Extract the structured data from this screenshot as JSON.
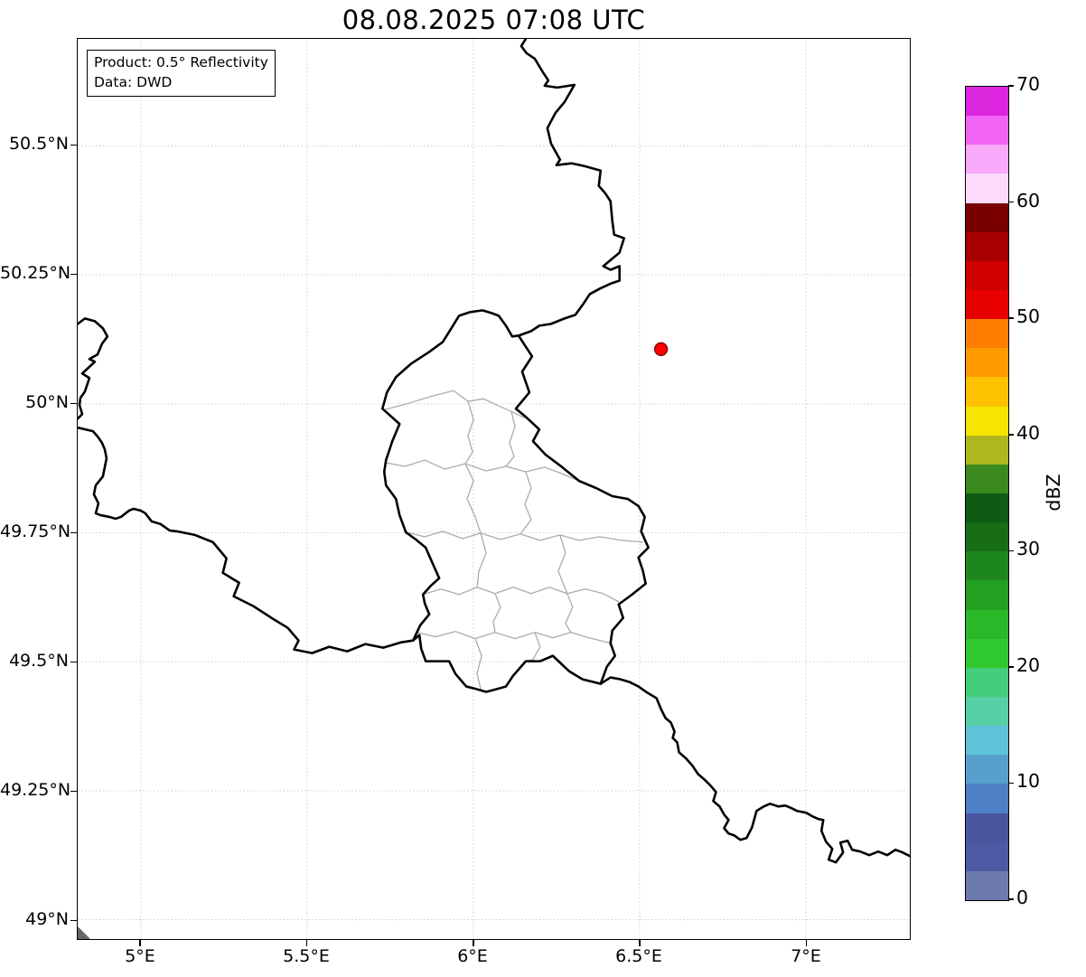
{
  "title": "08.08.2025 07:08 UTC",
  "info_box": {
    "line1": "Product: 0.5° Reflectivity",
    "line2": "Data: DWD"
  },
  "x_axis": {
    "ticks": [
      "5°E",
      "5.5°E",
      "6°E",
      "6.5°E",
      "7°E"
    ]
  },
  "y_axis": {
    "ticks": [
      "50.5°N",
      "50.25°N",
      "50°N",
      "49.75°N",
      "49.5°N",
      "49.25°N",
      "49°N"
    ]
  },
  "marker": {
    "shape": "filled-circle",
    "color": "#ff0000",
    "edge_color": "#7f0000",
    "approx_position_read_from_axes": "6.57°E, 50.11°N"
  },
  "colorbar": {
    "label": "dBZ",
    "tick_values": [
      0,
      10,
      20,
      30,
      40,
      50,
      60,
      70
    ],
    "value_min": 0,
    "value_max": 70,
    "segment_step_dbz": 2.5,
    "segments": [
      {
        "from": 0.0,
        "to": 2.5,
        "color": "#6e79ac"
      },
      {
        "from": 2.5,
        "to": 5.0,
        "color": "#4e5aa3"
      },
      {
        "from": 5.0,
        "to": 7.5,
        "color": "#47569d"
      },
      {
        "from": 7.5,
        "to": 10.0,
        "color": "#4d80c4"
      },
      {
        "from": 10.0,
        "to": 12.5,
        "color": "#55a0cd"
      },
      {
        "from": 12.5,
        "to": 15.0,
        "color": "#5fc4da"
      },
      {
        "from": 15.0,
        "to": 17.5,
        "color": "#56cfa4"
      },
      {
        "from": 17.5,
        "to": 20.0,
        "color": "#44cd7a"
      },
      {
        "from": 20.0,
        "to": 22.5,
        "color": "#2fc82f"
      },
      {
        "from": 22.5,
        "to": 25.0,
        "color": "#28b828"
      },
      {
        "from": 25.0,
        "to": 27.5,
        "color": "#22a022"
      },
      {
        "from": 27.5,
        "to": 30.0,
        "color": "#1d871d"
      },
      {
        "from": 30.0,
        "to": 32.5,
        "color": "#176e17"
      },
      {
        "from": 32.5,
        "to": 35.0,
        "color": "#0e5c13"
      },
      {
        "from": 35.0,
        "to": 37.5,
        "color": "#3a8a1d"
      },
      {
        "from": 37.5,
        "to": 40.0,
        "color": "#aeb71f"
      },
      {
        "from": 40.0,
        "to": 42.5,
        "color": "#f7e400"
      },
      {
        "from": 42.5,
        "to": 45.0,
        "color": "#fdc100"
      },
      {
        "from": 45.0,
        "to": 47.5,
        "color": "#fe9b00"
      },
      {
        "from": 47.5,
        "to": 50.0,
        "color": "#fd7e00"
      },
      {
        "from": 50.0,
        "to": 52.5,
        "color": "#e80000"
      },
      {
        "from": 52.5,
        "to": 55.0,
        "color": "#d00000"
      },
      {
        "from": 55.0,
        "to": 57.5,
        "color": "#a80000"
      },
      {
        "from": 57.5,
        "to": 60.0,
        "color": "#7a0000"
      },
      {
        "from": 60.0,
        "to": 62.5,
        "color": "#fcdafc"
      },
      {
        "from": 62.5,
        "to": 65.0,
        "color": "#f9a9f9"
      },
      {
        "from": 65.0,
        "to": 67.5,
        "color": "#f163f3"
      },
      {
        "from": 67.5,
        "to": 70.0,
        "color": "#dc26de"
      }
    ]
  },
  "theme": {
    "bg": "#ffffff",
    "map-border": "#000000",
    "map-admin": "#ababab",
    "grid": "#cdcdcd"
  }
}
